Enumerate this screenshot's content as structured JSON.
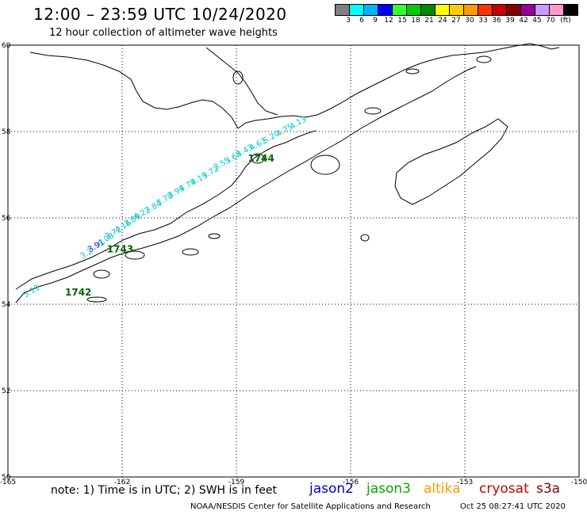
{
  "header": {
    "title": "12:00 – 23:59 UTC 10/24/2020",
    "subtitle": "12 hour collection of altimeter wave heights"
  },
  "color_scale": {
    "unit": "(ft)",
    "labels": [
      "3",
      "6",
      "9",
      "12",
      "15",
      "18",
      "21",
      "24",
      "27",
      "30",
      "33",
      "36",
      "39",
      "42",
      "45",
      "70"
    ],
    "colors": [
      "#808080",
      "#00ffff",
      "#00b4ff",
      "#0000ff",
      "#33ff33",
      "#00cc00",
      "#008800",
      "#ffff00",
      "#ffcc00",
      "#ff9900",
      "#ff3300",
      "#cc0000",
      "#880000",
      "#990099",
      "#cc99ff",
      "#ff99cc",
      "#000000"
    ]
  },
  "map": {
    "lon_ticks": [
      "-165",
      "-162",
      "-159",
      "-156",
      "-153",
      "-150"
    ],
    "lat_ticks": [
      "50",
      "52",
      "54",
      "56",
      "58",
      "60"
    ],
    "lon_range": [
      -165,
      -150
    ],
    "lat_range": [
      50,
      60
    ],
    "grid": "dotted"
  },
  "tracks": [
    {
      "time_label": "1742",
      "time_color": "#006400",
      "time_pos": [
        -163.5,
        54.2
      ],
      "observations": [
        {
          "lon": -164.55,
          "lat": 54.15,
          "value": "5.19",
          "color": "#00c8c8"
        }
      ]
    },
    {
      "time_label": "1743",
      "time_color": "#006400",
      "time_pos": [
        -162.4,
        55.2
      ],
      "observations": [
        {
          "lon": -163.05,
          "lat": 55.05,
          "value": "3.2",
          "color": "#00c8c8"
        },
        {
          "lon": -162.85,
          "lat": 55.2,
          "value": "3.91",
          "color": "#0000ff"
        },
        {
          "lon": -162.6,
          "lat": 55.35,
          "value": "4.08",
          "color": "#00c8c8"
        },
        {
          "lon": -162.4,
          "lat": 55.5,
          "value": "3.72",
          "color": "#00c8c8"
        },
        {
          "lon": -162.15,
          "lat": 55.65,
          "value": "4.16",
          "color": "#00c8c8"
        },
        {
          "lon": -161.9,
          "lat": 55.8,
          "value": "3.89",
          "color": "#00c8c8"
        },
        {
          "lon": -161.65,
          "lat": 55.95,
          "value": "4.22",
          "color": "#00c8c8"
        },
        {
          "lon": -161.35,
          "lat": 56.1,
          "value": "3.84",
          "color": "#00c8c8"
        },
        {
          "lon": -161.05,
          "lat": 56.28,
          "value": "3.78",
          "color": "#00c8c8"
        },
        {
          "lon": -160.75,
          "lat": 56.45,
          "value": "3.99",
          "color": "#00c8c8"
        },
        {
          "lon": -160.45,
          "lat": 56.6,
          "value": "4.79",
          "color": "#00c8c8"
        },
        {
          "lon": -160.15,
          "lat": 56.75,
          "value": "4.19",
          "color": "#00c8c8"
        },
        {
          "lon": -159.85,
          "lat": 56.9,
          "value": "3.72",
          "color": "#00c8c8"
        }
      ]
    },
    {
      "time_label": "1744",
      "time_color": "#006400",
      "time_pos": [
        -158.7,
        57.3
      ],
      "observations": [
        {
          "lon": -159.55,
          "lat": 57.1,
          "value": "3.55",
          "color": "#00c8c8"
        },
        {
          "lon": -159.25,
          "lat": 57.25,
          "value": "3.68",
          "color": "#00c8c8"
        },
        {
          "lon": -158.95,
          "lat": 57.4,
          "value": "4.43",
          "color": "#00c8c8"
        },
        {
          "lon": -158.6,
          "lat": 57.55,
          "value": "4.63",
          "color": "#00c8c8"
        },
        {
          "lon": -158.25,
          "lat": 57.72,
          "value": "5.20",
          "color": "#00c8c8"
        },
        {
          "lon": -157.9,
          "lat": 57.88,
          "value": "4.75",
          "color": "#00c8c8"
        },
        {
          "lon": -157.55,
          "lat": 58.05,
          "value": "4.13",
          "color": "#00c8c8"
        }
      ]
    }
  ],
  "footer": {
    "note": "note: 1) Time is in UTC; 2) SWH is in feet",
    "missions": [
      {
        "label": "jason2",
        "color": "#0000cc"
      },
      {
        "label": "jason3",
        "color": "#00aa00"
      },
      {
        "label": "altika",
        "color": "#ff9900"
      },
      {
        "label": "cryosat",
        "color": "#cc0000"
      },
      {
        "label": "s3a",
        "color": "#880000"
      }
    ],
    "credit": "NOAA/NESDIS Center for Satellite Applications and Research",
    "generated": "Oct 25 08:27:41 UTC 2020"
  }
}
